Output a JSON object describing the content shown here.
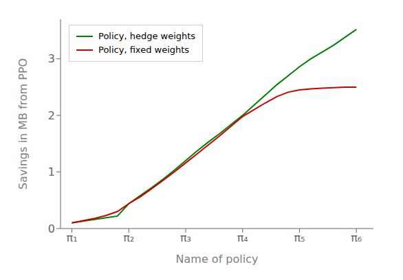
{
  "chart_data": {
    "type": "line",
    "xlabel": "Name of policy",
    "ylabel": "Savings in MB from PPO",
    "x": [
      1,
      1.2,
      1.4,
      1.6,
      1.8,
      2.0,
      2.2,
      2.4,
      2.6,
      2.8,
      3.0,
      3.2,
      3.4,
      3.6,
      3.8,
      4.0,
      4.2,
      4.4,
      4.6,
      4.8,
      5.0,
      5.2,
      5.4,
      5.6,
      5.8,
      6.0
    ],
    "series": [
      {
        "name": "Policy, hedge weights",
        "color": "#008000",
        "values": [
          0.1,
          0.13,
          0.16,
          0.19,
          0.22,
          0.44,
          0.58,
          0.72,
          0.87,
          1.03,
          1.2,
          1.37,
          1.53,
          1.68,
          1.84,
          2.0,
          2.18,
          2.36,
          2.54,
          2.7,
          2.86,
          3.0,
          3.12,
          3.24,
          3.38,
          3.52
        ]
      },
      {
        "name": "Policy, fixed weights",
        "color": "#cc0000",
        "values": [
          0.1,
          0.14,
          0.18,
          0.23,
          0.3,
          0.44,
          0.56,
          0.7,
          0.85,
          1.0,
          1.16,
          1.32,
          1.48,
          1.64,
          1.81,
          1.98,
          2.1,
          2.22,
          2.33,
          2.41,
          2.45,
          2.47,
          2.48,
          2.49,
          2.5,
          2.5
        ]
      }
    ],
    "xlim": [
      0.8,
      6.3
    ],
    "xticks": [
      {
        "value": 1,
        "label": "π₁"
      },
      {
        "value": 2,
        "label": "π₂"
      },
      {
        "value": 3,
        "label": "π₃"
      },
      {
        "value": 4,
        "label": "π₄"
      },
      {
        "value": 5,
        "label": "π₅"
      },
      {
        "value": 6,
        "label": "π₆"
      }
    ],
    "ylim": [
      0,
      3.7
    ],
    "yticks": [
      0,
      1,
      2,
      3
    ],
    "grid": false,
    "legend": "upper left"
  }
}
